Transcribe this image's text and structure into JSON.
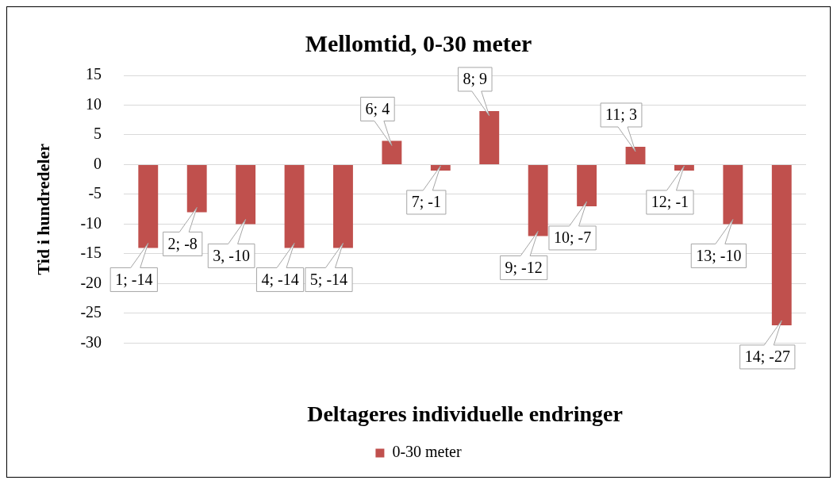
{
  "chart_data": {
    "type": "bar",
    "title": "Mellomtid, 0-30 meter",
    "xlabel": "Deltageres individuelle endringer",
    "ylabel": "Tid i hundredeler",
    "categories": [
      null,
      null,
      null,
      null,
      null,
      null,
      null,
      null,
      null,
      null,
      null,
      null,
      null,
      null
    ],
    "series": [
      {
        "name": "0-30 meter",
        "color": "#c0504d",
        "values": [
          -14,
          -8,
          -10,
          -14,
          -14,
          4,
          -1,
          9,
          -12,
          -7,
          3,
          -1,
          -10,
          -27
        ],
        "value_labels": [
          "1; -14",
          "2; -8",
          "3, -10",
          "4; -14",
          "5; -14",
          "6; 4",
          "7; -1",
          "8; 9",
          "9; -12",
          "10; -7",
          "11; 3",
          "12; -1",
          "13; -10",
          "14; -27"
        ]
      }
    ],
    "ylim": [
      -30,
      15
    ],
    "yticks": [
      -30,
      -25,
      -20,
      -15,
      -10,
      -5,
      0,
      5,
      10,
      15
    ],
    "grid": "y",
    "legend": "bottom",
    "tick_labels": "y"
  }
}
